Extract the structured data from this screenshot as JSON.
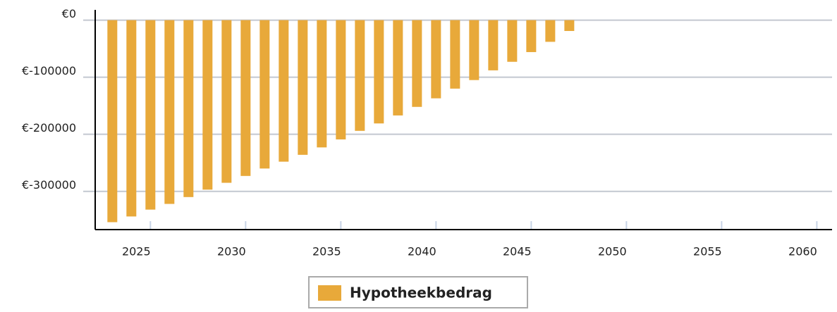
{
  "chart_data": {
    "type": "bar",
    "x": [
      2023,
      2024,
      2025,
      2026,
      2027,
      2028,
      2029,
      2030,
      2031,
      2032,
      2033,
      2034,
      2035,
      2036,
      2037,
      2038,
      2039,
      2040,
      2041,
      2042,
      2043,
      2044,
      2045,
      2046,
      2047
    ],
    "series": [
      {
        "name": "Hypotheekbedrag",
        "color": "#e8a93a",
        "values": [
          -354000,
          -344000,
          -332000,
          -322000,
          -310000,
          -297000,
          -285000,
          -273000,
          -260000,
          -248000,
          -236000,
          -223000,
          -209000,
          -194000,
          -181000,
          -167000,
          -152000,
          -137000,
          -120000,
          -105000,
          -88000,
          -73000,
          -56000,
          -38000,
          -19000
        ]
      }
    ],
    "xlim": [
      2022.1,
      2060.8
    ],
    "xticks": [
      2025,
      2030,
      2035,
      2040,
      2045,
      2050,
      2055,
      2060
    ],
    "ylim": [
      -367000,
      18000
    ],
    "yticks": [
      {
        "value": 0,
        "label": "€0"
      },
      {
        "value": -100000,
        "label": "€-100000"
      },
      {
        "value": -200000,
        "label": "€-200000"
      },
      {
        "value": -300000,
        "label": "€-300000"
      }
    ],
    "grid": true,
    "legend": "bottom"
  }
}
